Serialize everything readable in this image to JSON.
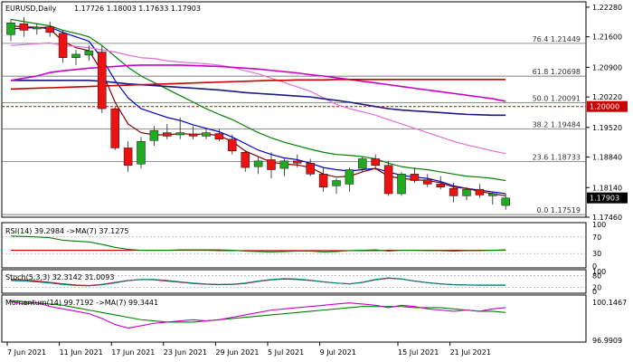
{
  "header": {
    "symbol": "EURUSD,Daily",
    "ohlc": "1.17726 1.18003 1.17633 1.17903"
  },
  "chart_data": [
    {
      "type": "candlestick",
      "pane": "price",
      "title": "EURUSD,Daily",
      "ylim": [
        1.1746,
        1.2232
      ],
      "y_ticks": [
        "1.22280",
        "1.21600",
        "1.20900",
        "1.20220",
        "1.19520",
        "1.18840",
        "1.18140",
        "1.17460"
      ],
      "x_ticks": [
        "7 Jun 2021",
        "11 Jun 2021",
        "17 Jun 2021",
        "23 Jun 2021",
        "29 Jun 2021",
        "5 Jul 2021",
        "9 Jul 2021",
        "15 Jul 2021",
        "21 Jul 2021"
      ],
      "candles": [
        {
          "o": 1.2165,
          "h": 1.22,
          "l": 1.215,
          "c": 1.2192
        },
        {
          "o": 1.219,
          "h": 1.2205,
          "l": 1.216,
          "c": 1.2175
        },
        {
          "o": 1.2178,
          "h": 1.219,
          "l": 1.2165,
          "c": 1.2182
        },
        {
          "o": 1.2183,
          "h": 1.2195,
          "l": 1.216,
          "c": 1.217
        },
        {
          "o": 1.2168,
          "h": 1.2175,
          "l": 1.21,
          "c": 1.2112
        },
        {
          "o": 1.2112,
          "h": 1.213,
          "l": 1.2095,
          "c": 1.212
        },
        {
          "o": 1.2118,
          "h": 1.214,
          "l": 1.2105,
          "c": 1.2128
        },
        {
          "o": 1.2125,
          "h": 1.214,
          "l": 1.1985,
          "c": 1.1995
        },
        {
          "o": 1.1995,
          "h": 1.2,
          "l": 1.19,
          "c": 1.1905
        },
        {
          "o": 1.1905,
          "h": 1.192,
          "l": 1.185,
          "c": 1.1865
        },
        {
          "o": 1.1868,
          "h": 1.193,
          "l": 1.1858,
          "c": 1.192
        },
        {
          "o": 1.1922,
          "h": 1.1955,
          "l": 1.191,
          "c": 1.1945
        },
        {
          "o": 1.194,
          "h": 1.196,
          "l": 1.1925,
          "c": 1.1932
        },
        {
          "o": 1.1935,
          "h": 1.1975,
          "l": 1.1925,
          "c": 1.194
        },
        {
          "o": 1.1937,
          "h": 1.1955,
          "l": 1.1925,
          "c": 1.1932
        },
        {
          "o": 1.1932,
          "h": 1.195,
          "l": 1.1925,
          "c": 1.194
        },
        {
          "o": 1.1938,
          "h": 1.1948,
          "l": 1.192,
          "c": 1.1925
        },
        {
          "o": 1.1925,
          "h": 1.1935,
          "l": 1.189,
          "c": 1.1898
        },
        {
          "o": 1.1895,
          "h": 1.19,
          "l": 1.185,
          "c": 1.186
        },
        {
          "o": 1.1862,
          "h": 1.1885,
          "l": 1.1845,
          "c": 1.1875
        },
        {
          "o": 1.1878,
          "h": 1.1895,
          "l": 1.1835,
          "c": 1.1855
        },
        {
          "o": 1.1858,
          "h": 1.188,
          "l": 1.184,
          "c": 1.1875
        },
        {
          "o": 1.1875,
          "h": 1.189,
          "l": 1.186,
          "c": 1.187
        },
        {
          "o": 1.187,
          "h": 1.188,
          "l": 1.184,
          "c": 1.1845
        },
        {
          "o": 1.1845,
          "h": 1.186,
          "l": 1.1805,
          "c": 1.1815
        },
        {
          "o": 1.1818,
          "h": 1.1835,
          "l": 1.18,
          "c": 1.183
        },
        {
          "o": 1.1822,
          "h": 1.186,
          "l": 1.1805,
          "c": 1.1855
        },
        {
          "o": 1.1858,
          "h": 1.1885,
          "l": 1.185,
          "c": 1.188
        },
        {
          "o": 1.188,
          "h": 1.189,
          "l": 1.1855,
          "c": 1.1865
        },
        {
          "o": 1.1865,
          "h": 1.1875,
          "l": 1.1795,
          "c": 1.18
        },
        {
          "o": 1.18,
          "h": 1.185,
          "l": 1.1795,
          "c": 1.1845
        },
        {
          "o": 1.1845,
          "h": 1.186,
          "l": 1.1825,
          "c": 1.183
        },
        {
          "o": 1.1832,
          "h": 1.1845,
          "l": 1.1815,
          "c": 1.1822
        },
        {
          "o": 1.1822,
          "h": 1.184,
          "l": 1.181,
          "c": 1.1815
        },
        {
          "o": 1.1812,
          "h": 1.1825,
          "l": 1.178,
          "c": 1.1795
        },
        {
          "o": 1.1795,
          "h": 1.1815,
          "l": 1.1785,
          "c": 1.181
        },
        {
          "o": 1.181,
          "h": 1.1822,
          "l": 1.179,
          "c": 1.1797
        },
        {
          "o": 1.1795,
          "h": 1.1805,
          "l": 1.1775,
          "c": 1.18
        },
        {
          "o": 1.1773,
          "h": 1.18,
          "l": 1.1763,
          "c": 1.179
        }
      ],
      "moving_averages": [
        {
          "color": "#0000cc",
          "values": [
            1.2178,
            1.218,
            1.2181,
            1.2182,
            1.217,
            1.216,
            1.215,
            1.211,
            1.206,
            1.202,
            1.1995,
            1.1985,
            1.1975,
            1.1968,
            1.1958,
            1.195,
            1.1942,
            1.193,
            1.1915,
            1.19,
            1.189,
            1.1882,
            1.1878,
            1.187,
            1.186,
            1.1855,
            1.1852,
            1.1855,
            1.1858,
            1.185,
            1.1842,
            1.1838,
            1.1835,
            1.1828,
            1.1818,
            1.1812,
            1.1808,
            1.1804,
            1.18
          ]
        },
        {
          "color": "#8b0000",
          "values": [
            1.2185,
            1.2183,
            1.2182,
            1.2178,
            1.215,
            1.2135,
            1.2128,
            1.208,
            1.201,
            1.196,
            1.194,
            1.1935,
            1.1935,
            1.1938,
            1.1936,
            1.1937,
            1.1933,
            1.192,
            1.1898,
            1.1885,
            1.1872,
            1.1868,
            1.1866,
            1.186,
            1.1845,
            1.1838,
            1.184,
            1.185,
            1.1858,
            1.184,
            1.1835,
            1.1832,
            1.183,
            1.1825,
            1.1815,
            1.1812,
            1.1805,
            1.18,
            1.1795
          ]
        },
        {
          "color": "#008000",
          "values": [
            1.22,
            1.2195,
            1.219,
            1.2185,
            1.2175,
            1.2168,
            1.216,
            1.214,
            1.2115,
            1.209,
            1.207,
            1.2055,
            1.204,
            1.2025,
            1.201,
            1.1995,
            1.1982,
            1.197,
            1.1955,
            1.194,
            1.1928,
            1.1918,
            1.191,
            1.1902,
            1.1895,
            1.189,
            1.1888,
            1.1885,
            1.188,
            1.187,
            1.1862,
            1.1858,
            1.1855,
            1.185,
            1.1845,
            1.184,
            1.1838,
            1.1835,
            1.183
          ]
        },
        {
          "color": "#e070d0",
          "values": [
            1.214,
            1.2142,
            1.2144,
            1.2146,
            1.214,
            1.2138,
            1.2135,
            1.213,
            1.2125,
            1.2118,
            1.2112,
            1.211,
            1.2105,
            1.2102,
            1.21,
            1.2098,
            1.2095,
            1.209,
            1.2082,
            1.2075,
            1.2065,
            1.2055,
            1.2045,
            1.2035,
            1.202,
            1.2005,
            1.1995,
            1.1988,
            1.198,
            1.197,
            1.196,
            1.195,
            1.194,
            1.193,
            1.192,
            1.1912,
            1.1905,
            1.1898,
            1.1892
          ]
        },
        {
          "color": "#1a1a80",
          "values": [
            1.206,
            1.206,
            1.206,
            1.206,
            1.206,
            1.206,
            1.206,
            1.2058,
            1.2055,
            1.2052,
            1.205,
            1.2048,
            1.2046,
            1.2044,
            1.2042,
            1.204,
            1.2038,
            1.2035,
            1.2032,
            1.203,
            1.2028,
            1.2026,
            1.2024,
            1.2022,
            1.2018,
            1.2014,
            1.201,
            1.2005,
            1.2,
            1.1995,
            1.1992,
            1.199,
            1.1988,
            1.1986,
            1.1984,
            1.1982,
            1.1981,
            1.198,
            1.198
          ]
        },
        {
          "color": "#cc00cc",
          "values": [
            1.206,
            1.2065,
            1.207,
            1.2078,
            1.2082,
            1.2085,
            1.2088,
            1.209,
            1.2092,
            1.2094,
            1.2095,
            1.2095,
            1.2095,
            1.2095,
            1.2094,
            1.2093,
            1.2092,
            1.209,
            1.2088,
            1.2086,
            1.2083,
            1.208,
            1.2077,
            1.2073,
            1.207,
            1.2066,
            1.2062,
            1.2058,
            1.2054,
            1.205,
            1.2046,
            1.2042,
            1.2038,
            1.2034,
            1.203,
            1.2026,
            1.2022,
            1.2018,
            1.2012
          ]
        },
        {
          "color": "#cc0000",
          "values": [
            1.204,
            1.2041,
            1.2042,
            1.2043,
            1.2044,
            1.2045,
            1.2046,
            1.2047,
            1.2048,
            1.2049,
            1.205,
            1.2051,
            1.2052,
            1.2053,
            1.2054,
            1.2055,
            1.2056,
            1.2057,
            1.2058,
            1.2059,
            1.206,
            1.206,
            1.2061,
            1.2061,
            1.2061,
            1.2062,
            1.2062,
            1.2062,
            1.2062,
            1.2062,
            1.2062,
            1.2062,
            1.2062,
            1.2062,
            1.2062,
            1.2062,
            1.2062,
            1.2062,
            1.2062
          ]
        }
      ],
      "fib_levels": [
        {
          "label": "76.4 1.21449",
          "value": 1.21449
        },
        {
          "label": "61.8 1.20698",
          "value": 1.20698
        },
        {
          "label": "50.0 1.20091",
          "value": 1.20091
        },
        {
          "label": "38.2 1.19484",
          "value": 1.19484
        },
        {
          "label": "23.6 1.18733",
          "value": 1.18733
        },
        {
          "label": "0.0 1.17519",
          "value": 1.17519
        }
      ],
      "horizontal_line": {
        "label": "1.20000",
        "value": 1.2,
        "color": "#cc0000"
      },
      "last_price": {
        "label": "1.17903",
        "value": 1.17903
      }
    },
    {
      "type": "line",
      "pane": "rsi",
      "title": "RSI(14) 39.2984  ->MA(7) 37.1275",
      "ylim": [
        0,
        100
      ],
      "y_ticks": [
        "100",
        "70",
        "30",
        "0"
      ],
      "levels": [
        70,
        30
      ],
      "series": [
        {
          "color": "#cc0000",
          "values": [
            38,
            38,
            38,
            38,
            38,
            38,
            38,
            38,
            38,
            38,
            38,
            38,
            38,
            38,
            38,
            38,
            37,
            37,
            37,
            37,
            37,
            37,
            37,
            37,
            37,
            37,
            37,
            37,
            37,
            38,
            38,
            38,
            38,
            38,
            38,
            38,
            38,
            38,
            38
          ]
        },
        {
          "color": "#008000",
          "values": [
            72,
            71,
            70,
            68,
            62,
            60,
            58,
            52,
            45,
            40,
            38,
            38,
            38,
            39,
            39,
            39,
            39,
            38,
            36,
            35,
            34,
            35,
            36,
            36,
            34,
            35,
            37,
            38,
            39,
            36,
            38,
            38,
            37,
            37,
            36,
            37,
            37,
            38,
            39
          ]
        }
      ]
    },
    {
      "type": "line",
      "pane": "stoch",
      "title": "Stoch(5,3,3) 32.3142 31.0093",
      "ylim": [
        0,
        100
      ],
      "y_ticks": [
        "100",
        "80",
        "20",
        "0"
      ],
      "levels": [
        80,
        20
      ],
      "series": [
        {
          "color": "#cc0000",
          "values": [
            60,
            58,
            52,
            45,
            38,
            32,
            30,
            35,
            45,
            55,
            60,
            58,
            52,
            46,
            40,
            36,
            34,
            35,
            40,
            50,
            58,
            62,
            60,
            55,
            48,
            42,
            38,
            45,
            58,
            66,
            62,
            52,
            44,
            38,
            34,
            32,
            31,
            31,
            31
          ]
        },
        {
          "color": "#008080",
          "values": [
            55,
            52,
            48,
            42,
            35,
            30,
            28,
            33,
            43,
            54,
            60,
            60,
            55,
            48,
            42,
            37,
            35,
            36,
            42,
            52,
            60,
            64,
            62,
            56,
            48,
            42,
            38,
            46,
            60,
            68,
            63,
            52,
            44,
            38,
            34,
            32,
            32,
            32,
            32
          ]
        }
      ]
    },
    {
      "type": "line",
      "pane": "momentum",
      "title": "Momentum(14) 99.7192  ->MA(7) 99.3441",
      "y_ticks": [
        "100.1467",
        "96.9909"
      ],
      "series": [
        {
          "color": "#008000",
          "values": [
            100.3,
            100.2,
            100.1,
            100.0,
            99.9,
            99.7,
            99.5,
            99.3,
            99.1,
            98.9,
            98.7,
            98.6,
            98.5,
            98.5,
            98.5,
            98.6,
            98.7,
            98.8,
            98.9,
            99.0,
            99.1,
            99.2,
            99.3,
            99.4,
            99.5,
            99.6,
            99.7,
            99.8,
            99.8,
            99.8,
            99.8,
            99.7,
            99.7,
            99.7,
            99.6,
            99.5,
            99.4,
            99.4,
            99.3
          ]
        },
        {
          "color": "#cc00cc",
          "values": [
            100.2,
            100.0,
            100.1,
            99.8,
            99.6,
            99.4,
            99.2,
            98.8,
            98.3,
            98.0,
            98.2,
            98.4,
            98.5,
            98.6,
            98.7,
            98.6,
            98.7,
            98.9,
            99.1,
            99.3,
            99.5,
            99.6,
            99.7,
            99.8,
            99.9,
            100.0,
            100.1,
            100.0,
            99.9,
            99.7,
            99.9,
            99.8,
            99.6,
            99.5,
            99.4,
            99.5,
            99.4,
            99.6,
            99.7
          ]
        }
      ]
    }
  ]
}
